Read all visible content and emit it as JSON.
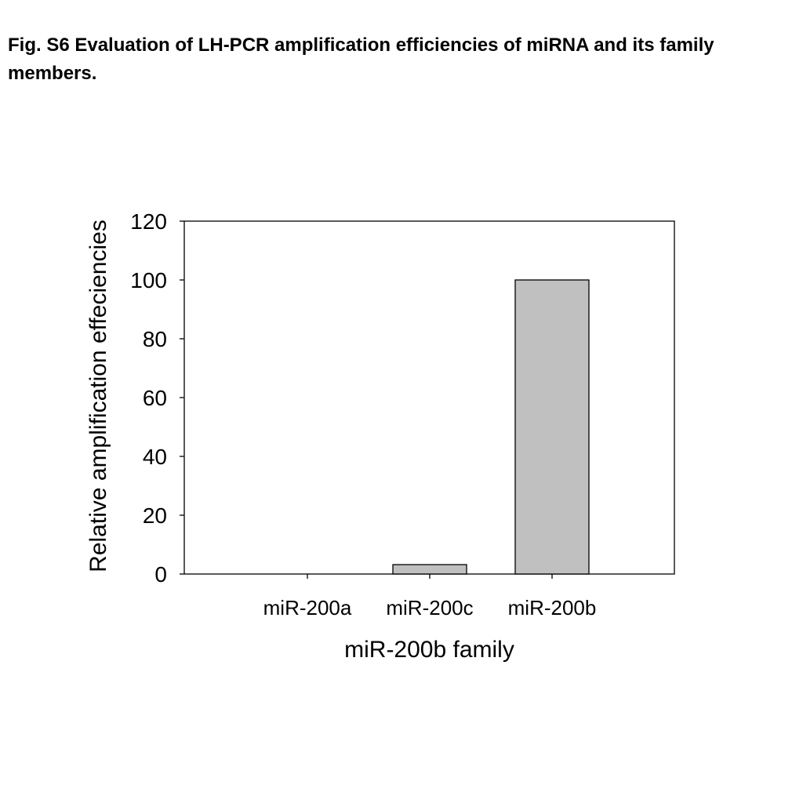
{
  "figure": {
    "caption": "Fig. S6  Evaluation of LH-PCR  amplification efficiencies of miRNA and its family members."
  },
  "chart_data": {
    "type": "bar",
    "categories": [
      "miR-200a",
      "miR-200c",
      "miR-200b"
    ],
    "values": [
      0,
      3.2,
      100
    ],
    "xlabel": "miR-200b family",
    "ylabel": "Relative amplification effeciencies",
    "ylim": [
      0,
      120
    ],
    "yticks": [
      0,
      20,
      40,
      60,
      80,
      100,
      120
    ],
    "grid": false,
    "legend": "none",
    "bar_color": "#c0c0c0",
    "bar_edge_color": "#000000"
  }
}
